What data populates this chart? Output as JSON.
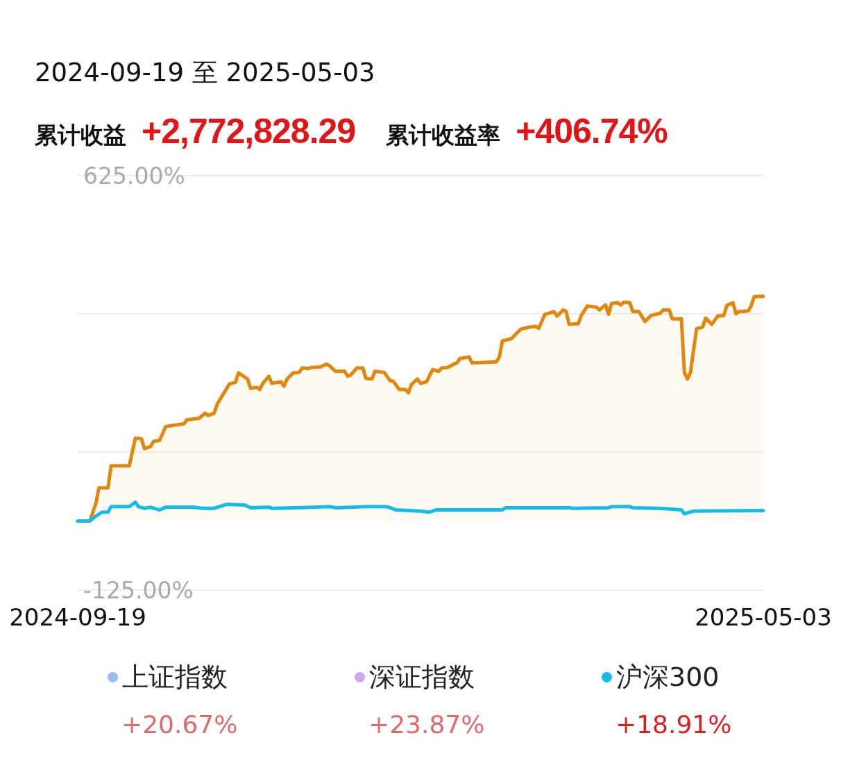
{
  "chart_data": {
    "type": "line",
    "title": "2024-09-19 至 2025-05-03",
    "annotations": [
      "累计收益",
      "+2,772,828.29",
      "累计收益率",
      "+406.74%",
      "+20.67%",
      "+23.87%",
      "+18.91%"
    ],
    "x": [
      "2024-09-19",
      "2024-09-23",
      "2024-09-25",
      "2024-09-26",
      "2024-09-29",
      "2024-09-30",
      "2024-10-06",
      "2024-10-08",
      "2024-10-10",
      "2024-10-11",
      "2024-10-13",
      "2024-10-14",
      "2024-10-16",
      "2024-10-18",
      "2024-10-24",
      "2024-10-25",
      "2024-10-29",
      "2024-10-31",
      "2024-11-01",
      "2024-11-03",
      "2024-11-04",
      "2024-11-08",
      "2024-11-10",
      "2024-11-11",
      "2024-11-14",
      "2024-11-15",
      "2024-11-17",
      "2024-11-18",
      "2024-11-19",
      "2024-11-21",
      "2024-11-22",
      "2024-11-25",
      "2024-11-26",
      "2024-11-27",
      "2024-11-29",
      "2024-12-01",
      "2024-12-02",
      "2024-12-04",
      "2024-12-05",
      "2024-12-08",
      "2024-12-10",
      "2024-12-11",
      "2024-12-13",
      "2024-12-16",
      "2024-12-17",
      "2024-12-18",
      "2024-12-20",
      "2024-12-22",
      "2024-12-23",
      "2024-12-25",
      "2024-12-26",
      "2024-12-29",
      "2024-12-31",
      "2025-01-01",
      "2025-01-03",
      "2025-01-05",
      "2025-01-06",
      "2025-01-07",
      "2025-01-09",
      "2025-01-10",
      "2025-01-12",
      "2025-01-14",
      "2025-01-16",
      "2025-01-17",
      "2025-01-19",
      "2025-01-21",
      "2025-01-22",
      "2025-01-23",
      "2025-01-26",
      "2025-01-27",
      "2025-02-04",
      "2025-02-05",
      "2025-02-06",
      "2025-02-09",
      "2025-02-12",
      "2025-02-15",
      "2025-02-17",
      "2025-02-18",
      "2025-02-20",
      "2025-02-22",
      "2025-02-23",
      "2025-02-24",
      "2025-02-26",
      "2025-02-27",
      "2025-02-28",
      "2025-03-03",
      "2025-03-04",
      "2025-03-06",
      "2025-03-09",
      "2025-03-10",
      "2025-03-12",
      "2025-03-13",
      "2025-03-14",
      "2025-03-16",
      "2025-03-17",
      "2025-03-18",
      "2025-03-20",
      "2025-03-21",
      "2025-03-23",
      "2025-03-25",
      "2025-03-27",
      "2025-03-30",
      "2025-03-31",
      "2025-04-02",
      "2025-04-03",
      "2025-04-06",
      "2025-04-07",
      "2025-04-08",
      "2025-04-09",
      "2025-04-11",
      "2025-04-13",
      "2025-04-14",
      "2025-04-16",
      "2025-04-18",
      "2025-04-20",
      "2025-04-21",
      "2025-04-23",
      "2025-04-24",
      "2025-04-25",
      "2025-04-28",
      "2025-04-29",
      "2025-04-30",
      "2025-05-03"
    ],
    "series": [
      {
        "type": "area",
        "color": "#e2860c",
        "values": [
          0,
          0,
          32,
          60,
          60,
          100,
          100,
          150,
          149,
          131,
          135,
          144,
          146,
          171,
          176,
          183,
          186,
          195,
          191,
          195,
          212,
          248,
          251,
          268,
          257,
          240,
          242,
          238,
          249,
          262,
          249,
          252,
          244,
          257,
          268,
          269,
          277,
          276,
          278,
          279,
          284,
          281,
          271,
          271,
          262,
          264,
          277,
          277,
          258,
          257,
          271,
          269,
          254,
          253,
          238,
          238,
          232,
          247,
          257,
          249,
          252,
          274,
          271,
          277,
          278,
          284,
          286,
          294,
          297,
          286,
          288,
          297,
          326,
          330,
          347,
          351,
          352,
          349,
          374,
          377,
          379,
          371,
          382,
          379,
          356,
          357,
          372,
          389,
          387,
          382,
          391,
          374,
          394,
          395,
          391,
          396,
          395,
          379,
          379,
          361,
          372,
          376,
          382,
          382,
          366,
          366,
          269,
          257,
          269,
          348,
          351,
          367,
          356,
          371,
          372,
          390,
          395,
          375,
          379,
          380,
          389,
          406,
          406.74
        ]
      },
      {
        "name": "上证指数",
        "color": "#9dbaf5",
        "values": [
          null,
          null,
          null,
          null,
          null,
          null,
          null,
          null,
          null,
          null,
          null,
          null,
          null,
          null,
          null,
          null,
          null,
          null,
          null,
          null,
          null,
          null,
          null,
          null,
          null,
          null,
          null,
          null,
          null,
          null,
          null,
          null,
          null,
          null,
          null,
          null,
          null,
          null,
          null,
          null,
          null,
          null,
          null,
          null,
          null,
          null,
          null,
          null,
          null,
          null,
          null,
          null,
          null,
          null,
          null,
          null,
          null,
          null,
          null,
          null,
          null,
          null,
          null,
          null,
          null,
          null,
          null,
          null,
          null,
          null,
          null,
          null,
          null,
          null,
          null,
          null,
          null,
          null,
          null,
          null,
          null,
          null,
          null,
          null,
          null,
          null,
          null,
          null,
          null,
          null,
          null,
          null,
          null,
          null,
          null,
          null,
          null,
          null,
          null,
          null,
          null,
          null,
          null,
          null,
          null,
          null,
          null,
          null,
          null,
          null,
          null,
          null,
          null,
          null,
          null,
          null,
          null,
          null,
          null,
          null,
          null,
          null,
          null
        ]
      },
      {
        "name": "深证指数",
        "color": "#c9aaf0",
        "values": [
          null,
          null,
          null,
          null,
          null,
          null,
          null,
          null,
          null,
          null,
          null,
          null,
          null,
          null,
          null,
          null,
          null,
          null,
          null,
          null,
          null,
          null,
          null,
          null,
          null,
          null,
          null,
          null,
          null,
          null,
          null,
          null,
          null,
          null,
          null,
          null,
          null,
          null,
          null,
          null,
          null,
          null,
          null,
          null,
          null,
          null,
          null,
          null,
          null,
          null,
          null,
          null,
          null,
          null,
          null,
          null,
          null,
          null,
          null,
          null,
          null,
          null,
          null,
          null,
          null,
          null,
          null,
          null,
          null,
          null,
          null,
          null,
          null,
          null,
          null,
          null,
          null,
          null,
          null,
          null,
          null,
          null,
          null,
          null,
          null,
          null,
          null,
          null,
          null,
          null,
          null,
          null,
          null,
          null,
          null,
          null,
          null,
          null,
          null,
          null,
          null,
          null,
          null,
          null,
          null,
          null,
          null,
          null,
          null,
          null,
          null,
          null,
          null,
          null,
          null,
          null,
          null,
          null,
          null,
          null,
          null,
          null,
          null
        ]
      },
      {
        "name": "沪深300",
        "color": "#14bde6",
        "x": [
          "2024-09-19",
          "2024-09-23",
          "2024-09-25",
          "2024-09-27",
          "2024-09-29",
          "2024-09-30",
          "2024-10-06",
          "2024-10-08",
          "2024-10-09",
          "2024-10-11",
          "2024-10-13",
          "2024-10-16",
          "2024-10-18",
          "2024-10-27",
          "2024-10-30",
          "2024-11-03",
          "2024-11-07",
          "2024-11-13",
          "2024-11-15",
          "2024-11-21",
          "2024-11-22",
          "2024-11-30",
          "2024-12-11",
          "2024-12-13",
          "2024-12-23",
          "2024-12-30",
          "2025-01-02",
          "2025-01-10",
          "2025-01-13",
          "2025-01-15",
          "2025-02-06",
          "2025-02-07",
          "2025-02-28",
          "2025-03-01",
          "2025-03-13",
          "2025-03-14",
          "2025-03-20",
          "2025-03-21",
          "2025-03-30",
          "2025-04-06",
          "2025-04-07",
          "2025-04-10",
          "2025-05-03"
        ],
        "values": [
          0,
          0,
          9,
          16,
          16,
          26,
          26,
          34,
          26,
          23,
          25,
          20,
          25,
          25,
          23,
          23,
          30,
          29,
          24,
          25,
          23,
          24,
          26,
          24,
          26,
          26,
          20,
          18,
          16,
          20,
          20,
          24,
          24,
          23,
          24,
          26,
          26,
          24,
          23,
          20,
          13,
          18,
          18.91
        ]
      }
    ],
    "xlim": [
      "2024-09-19",
      "2025-05-03"
    ],
    "xticks": [
      "2024-09-19",
      "2025-05-03"
    ],
    "ylim": [
      -125,
      625
    ],
    "yticks": [
      {
        "value": 625,
        "label": "625.00%"
      },
      {
        "value": 375,
        "label": null
      },
      {
        "value": 125,
        "label": null
      },
      {
        "value": -125,
        "label": "-125.00%"
      }
    ],
    "grid": "y",
    "legend": "bottom",
    "marker": "none",
    "line_style": "solid"
  }
}
